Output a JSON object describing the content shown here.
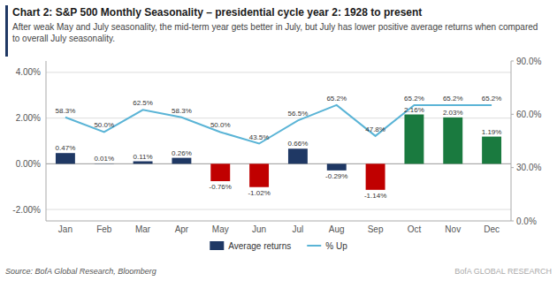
{
  "chart_data": {
    "type": "bar",
    "title": "Chart 2: S&P 500 Monthly Seasonality – presidential cycle year 2: 1928 to present",
    "subtitle": "After weak May and July seasonality, the mid-term year gets better in July, but July has lower positive average returns when compared to overall July seasonality.",
    "categories": [
      "Jan",
      "Feb",
      "Mar",
      "Apr",
      "May",
      "Jun",
      "Jul",
      "Aug",
      "Sep",
      "Oct",
      "Nov",
      "Dec"
    ],
    "series": [
      {
        "name": "Average returns",
        "type": "bar",
        "color": "#1f3864",
        "colors": [
          "#1f3864",
          "#1f3864",
          "#1f3864",
          "#1f3864",
          "#c00000",
          "#c00000",
          "#1f3864",
          "#1f3864",
          "#c00000",
          "#1a7a3f",
          "#1a7a3f",
          "#1a7a3f"
        ],
        "values": [
          0.47,
          0.01,
          0.11,
          0.26,
          -0.76,
          -1.02,
          0.66,
          -0.29,
          -1.14,
          2.16,
          2.03,
          1.19
        ],
        "value_labels": [
          "0.47%",
          "0.01%",
          "0.11%",
          "0.26%",
          "-0.76%",
          "-1.02%",
          "0.66%",
          "-0.29%",
          "-1.14%",
          "2.16%",
          "2.03%",
          "1.19%"
        ]
      },
      {
        "name": "% Up",
        "type": "line",
        "color": "#5ab4d6",
        "axis": "y2",
        "values": [
          58.3,
          50.0,
          62.5,
          58.3,
          50.0,
          43.5,
          56.5,
          65.2,
          47.8,
          65.2,
          65.2,
          65.2
        ],
        "value_labels": [
          "58.3%",
          "50.0%",
          "62.5%",
          "58.3%",
          "50.0%",
          "43.5%",
          "56.5%",
          "65.2%",
          "47.8%",
          "65.2%",
          "65.2%",
          "65.2%"
        ]
      }
    ],
    "ylim": [
      -2.5,
      4.5
    ],
    "yticks": [
      {
        "value": -2.0,
        "label": "-2.00%"
      },
      {
        "value": 0.0,
        "label": "0.00%"
      },
      {
        "value": 2.0,
        "label": "2.00%"
      },
      {
        "value": 4.0,
        "label": "4.00%"
      }
    ],
    "y2lim": [
      0.0,
      90.0
    ],
    "y2ticks": [
      {
        "value": 0.0,
        "label": "0.0%"
      },
      {
        "value": 30.0,
        "label": "30.0%"
      },
      {
        "value": 60.0,
        "label": "60.0%"
      },
      {
        "value": 90.0,
        "label": "90.0%"
      }
    ],
    "grid": true,
    "legend": "bottom",
    "data_labels": true,
    "annotations": [
      "Source: BofA Global Research, Bloomberg",
      "BofA GLOBAL RESEARCH"
    ]
  }
}
